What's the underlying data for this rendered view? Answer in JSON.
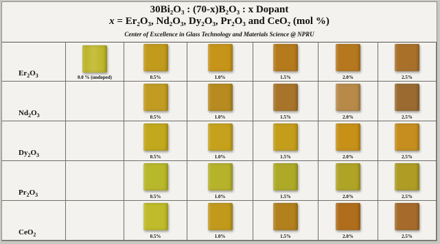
{
  "title_line1": "30Bi₂O₃ : (70-x)B₂O₃ : x Dopant",
  "title_line2_var": "x",
  "title_line2_rest": " = Er₂O₃, Nd₂O₃, Dy₂O₃, Pr₂O₃ and CeO₂ (mol %)",
  "subtitle": "Center of Excellence in Glass Technology and Materials Science @ NPRU",
  "undoped_label": "0.0 % (undoped)",
  "undoped_color": "#b9b022",
  "columns": [
    "0.5%",
    "1.0%",
    "1.5%",
    "2.0%",
    "2.5%"
  ],
  "rows": [
    {
      "label": "Er",
      "sub1": "2",
      "mid": "O",
      "sub2": "3",
      "colors": [
        "#c29a1c",
        "#c69418",
        "#b57a1c",
        "#b6781f",
        "#a9702a"
      ]
    },
    {
      "label": "Nd",
      "sub1": "2",
      "mid": "O",
      "sub2": "3",
      "colors": [
        "#c29c22",
        "#b78b1f",
        "#a8742a",
        "#b88a4a",
        "#9a6a30"
      ]
    },
    {
      "label": "Dy",
      "sub1": "2",
      "mid": "O",
      "sub2": "3",
      "colors": [
        "#c2a81c",
        "#c6a21c",
        "#c49e1a",
        "#c79118",
        "#c58e1e"
      ]
    },
    {
      "label": "Pr",
      "sub1": "2",
      "mid": "O",
      "sub2": "3",
      "colors": [
        "#b8b82a",
        "#b6b22a",
        "#aeaa28",
        "#b0a426",
        "#ae9c24"
      ]
    },
    {
      "label": "Ce",
      "sub1": "",
      "mid": "O",
      "sub2": "2",
      "colors": [
        "#bfbb2a",
        "#c19a1c",
        "#b2801c",
        "#b06e1c",
        "#a66a2a"
      ]
    }
  ]
}
